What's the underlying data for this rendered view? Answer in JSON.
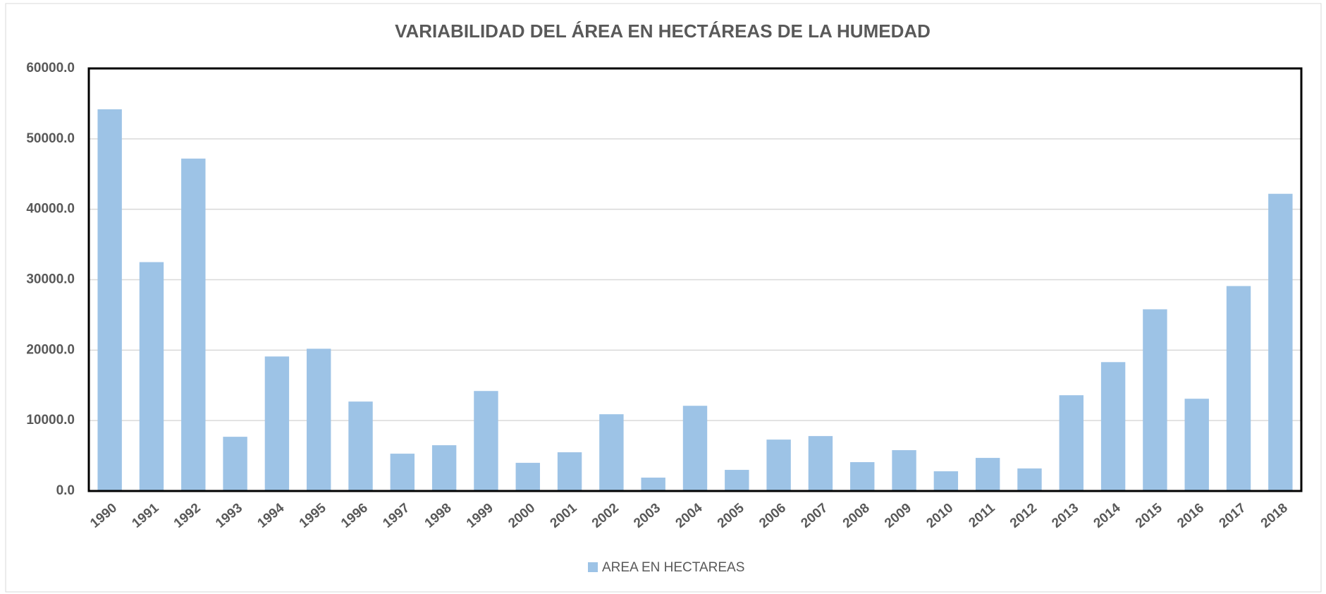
{
  "chart_data": {
    "type": "bar",
    "title": "VARIABILIDAD DEL ÁREA EN HECTÁREAS DE LA HUMEDAD",
    "categories": [
      "1990",
      "1991",
      "1992",
      "1993",
      "1994",
      "1995",
      "1996",
      "1997",
      "1998",
      "1999",
      "2000",
      "2001",
      "2002",
      "2003",
      "2004",
      "2005",
      "2006",
      "2007",
      "2008",
      "2009",
      "2010",
      "2011",
      "2012",
      "2013",
      "2014",
      "2015",
      "2016",
      "2017",
      "2018"
    ],
    "series": [
      {
        "name": "AREA EN HECTAREAS",
        "color": "#9dc3e6",
        "values": [
          54200,
          32500,
          47200,
          7700,
          19100,
          20200,
          12700,
          5300,
          6500,
          14200,
          4000,
          5500,
          10900,
          1900,
          12100,
          3000,
          7300,
          7800,
          4100,
          5800,
          2800,
          4700,
          3200,
          13600,
          18300,
          25800,
          13100,
          29100,
          42200
        ]
      }
    ],
    "ylim": [
      0,
      60000
    ],
    "yticks": [
      {
        "value": 0,
        "label": "0.0"
      },
      {
        "value": 10000,
        "label": "10000.0"
      },
      {
        "value": 20000,
        "label": "20000.0"
      },
      {
        "value": 30000,
        "label": "30000.0"
      },
      {
        "value": 40000,
        "label": "40000.0"
      },
      {
        "value": 50000,
        "label": "50000.0"
      },
      {
        "value": 60000,
        "label": "60000.0"
      }
    ],
    "grid": true
  }
}
